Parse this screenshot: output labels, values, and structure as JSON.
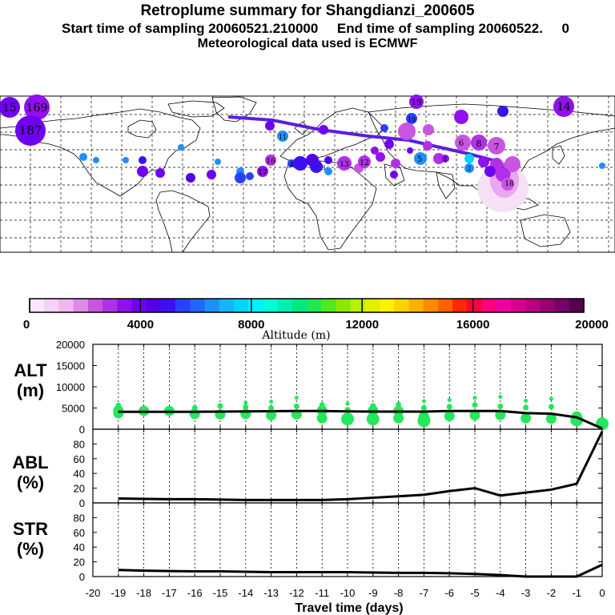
{
  "header": {
    "title": "Retroplume summary for Shangdianzi_200605",
    "line2": "Start time of sampling 20060521.210000     End time of sampling 20060522.     0",
    "line3": "Meteorological data used is ECMWF"
  },
  "colors": {
    "track": "#5a1fe0",
    "alt_points": "#22e85a",
    "plume_light": "#f0d0f4"
  },
  "colorbar": {
    "label": "Altitude (m)",
    "ticks": [
      "0",
      "4000",
      "8000",
      "12000",
      "16000",
      "20000"
    ],
    "colors": [
      "#fbe6fb",
      "#f6d0f6",
      "#efb6f0",
      "#e08ae8",
      "#c855e0",
      "#b030e8",
      "#9010f0",
      "#7000f5",
      "#5400e6",
      "#3c10f0",
      "#2a40ff",
      "#1f68ff",
      "#1e8fff",
      "#15b4ff",
      "#00d4ff",
      "#00f0ff",
      "#00ffd8",
      "#00f0b0",
      "#00e880",
      "#20e850",
      "#50e820",
      "#8ae800",
      "#b8ee00",
      "#e0f000",
      "#fff000",
      "#ffd200",
      "#ffb000",
      "#ff8a00",
      "#ff6000",
      "#ff2800",
      "#ff0040",
      "#ff0080",
      "#f000a0",
      "#d80090",
      "#b80080",
      "#980070",
      "#780068",
      "#580050"
    ]
  },
  "map": {
    "labels": [
      "15",
      "169",
      "187",
      "14",
      "19",
      "10",
      "8",
      "7",
      "6",
      "5",
      "4",
      "3",
      "2",
      "1",
      "13",
      "12",
      "11",
      "16",
      "17",
      "18"
    ]
  },
  "chart_data": [
    {
      "type": "line",
      "panel": "ALT",
      "ylabel": "ALT\n(m)",
      "ylim": [
        0,
        20000
      ],
      "yticks": [
        "20000",
        "15000",
        "10000",
        "5000",
        "0"
      ],
      "x": [
        -19,
        -18,
        -17,
        -16,
        -15,
        -14,
        -13,
        -12,
        -11,
        -10,
        -9,
        -8,
        -7,
        -6,
        -5,
        -4,
        -3,
        -2,
        -1,
        0
      ],
      "values": [
        4100,
        4100,
        4100,
        4100,
        4150,
        4200,
        4250,
        4300,
        4300,
        4200,
        4150,
        4150,
        4150,
        4300,
        4300,
        4300,
        3800,
        3650,
        2800,
        200
      ],
      "scatter_points": [
        [
          -19,
          5600
        ],
        [
          -19,
          4400
        ],
        [
          -19,
          3800
        ],
        [
          -18,
          4800
        ],
        [
          -18,
          4300
        ],
        [
          -17,
          4700
        ],
        [
          -17,
          4300
        ],
        [
          -16,
          5000
        ],
        [
          -16,
          3600
        ],
        [
          -15,
          5500
        ],
        [
          -15,
          3500
        ],
        [
          -14,
          6200
        ],
        [
          -14,
          5200
        ],
        [
          -14,
          3600
        ],
        [
          -13,
          6500
        ],
        [
          -13,
          5000
        ],
        [
          -13,
          3300
        ],
        [
          -12,
          7400
        ],
        [
          -12,
          5400
        ],
        [
          -12,
          3500
        ],
        [
          -11,
          5700
        ],
        [
          -11,
          4400
        ],
        [
          -11,
          2600
        ],
        [
          -10,
          6000
        ],
        [
          -10,
          4600
        ],
        [
          -10,
          2400
        ],
        [
          -9,
          5500
        ],
        [
          -9,
          4400
        ],
        [
          -9,
          2400
        ],
        [
          -8,
          5800
        ],
        [
          -8,
          4300
        ],
        [
          -8,
          2600
        ],
        [
          -7,
          6600
        ],
        [
          -7,
          5000
        ],
        [
          -7,
          3000
        ],
        [
          -7,
          2000
        ],
        [
          -6,
          6900
        ],
        [
          -6,
          5300
        ],
        [
          -6,
          3100
        ],
        [
          -5,
          7400
        ],
        [
          -5,
          5700
        ],
        [
          -5,
          3300
        ],
        [
          -4,
          7600
        ],
        [
          -4,
          5400
        ],
        [
          -4,
          3400
        ],
        [
          -3,
          6700
        ],
        [
          -3,
          5100
        ],
        [
          -3,
          2600
        ],
        [
          -2,
          7200
        ],
        [
          -2,
          5300
        ],
        [
          -2,
          2500
        ],
        [
          -1,
          3000
        ],
        [
          -1,
          2200
        ],
        [
          0,
          1300
        ]
      ]
    },
    {
      "type": "line",
      "panel": "ABL",
      "ylabel": "ABL\n(%)",
      "ylim": [
        0,
        100
      ],
      "yticks": [
        "80",
        "60",
        "40",
        "20",
        "0"
      ],
      "x": [
        -19,
        -18,
        -17,
        -16,
        -15,
        -14,
        -13,
        -12,
        -11,
        -10,
        -9,
        -8,
        -7,
        -6,
        -5,
        -4,
        -3,
        -2,
        -1,
        0
      ],
      "values": [
        6,
        5.5,
        5,
        5,
        4.5,
        4,
        4,
        4,
        4,
        5,
        7,
        9,
        11,
        16,
        20,
        10,
        14,
        18,
        26,
        97
      ]
    },
    {
      "type": "line",
      "panel": "STR",
      "ylabel": "STR\n(%)",
      "ylim": [
        0,
        100
      ],
      "yticks": [
        "80",
        "60",
        "40",
        "20",
        "0"
      ],
      "xlabel": "Travel time (days)",
      "xticks": [
        "-20",
        "-19",
        "-18",
        "-17",
        "-16",
        "-15",
        "-14",
        "-13",
        "-12",
        "-11",
        "-10",
        "-9",
        "-8",
        "-7",
        "-6",
        "-5",
        "-4",
        "-3",
        "-2",
        "-1",
        "0"
      ],
      "x": [
        -19,
        -18,
        -17,
        -16,
        -15,
        -14,
        -13,
        -12,
        -11,
        -10,
        -9,
        -8,
        -7,
        -6,
        -5,
        -4,
        -3,
        -2,
        -1,
        0
      ],
      "values": [
        9,
        8,
        7.5,
        7,
        7,
        6.5,
        6,
        6,
        6,
        6,
        5.5,
        5,
        5,
        4.5,
        3.5,
        2,
        0,
        0,
        0,
        16
      ]
    }
  ]
}
